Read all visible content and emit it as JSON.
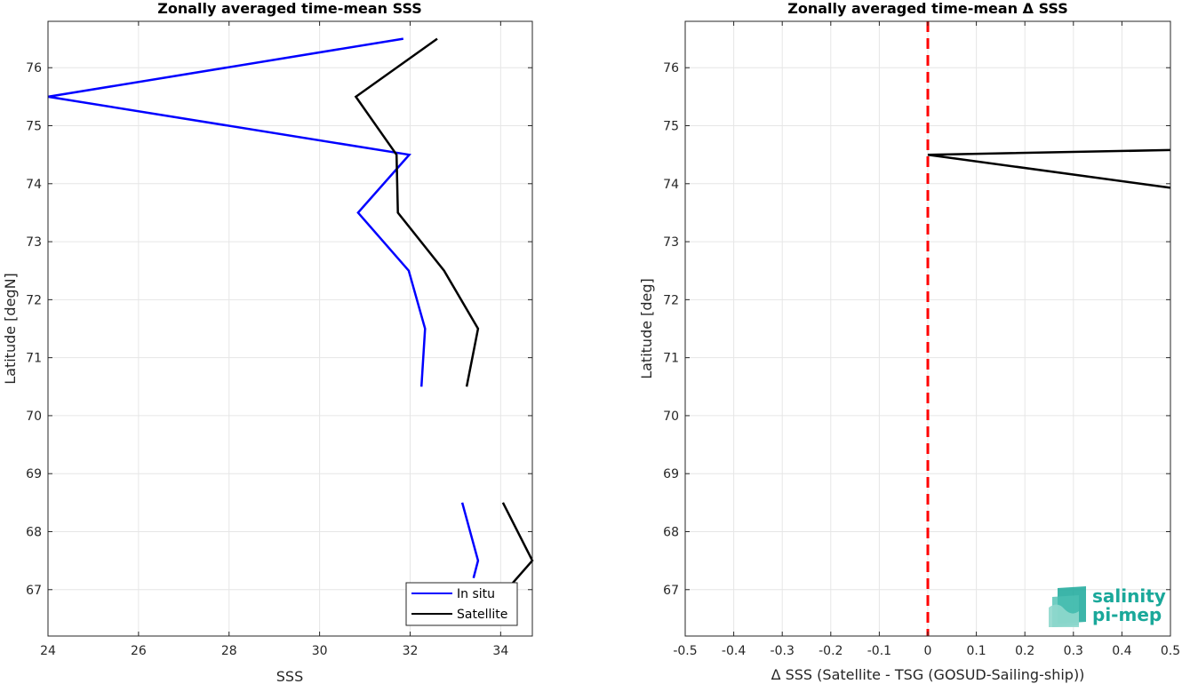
{
  "chart_data": [
    {
      "type": "line",
      "title": "Zonally averaged time-mean SSS",
      "xlabel": "SSS",
      "ylabel": "Latitude [degN]",
      "xlim": [
        24,
        34.7
      ],
      "ylim": [
        66.2,
        76.8
      ],
      "xticks": [
        24,
        26,
        28,
        30,
        32,
        34
      ],
      "yticks": [
        67,
        68,
        69,
        70,
        71,
        72,
        73,
        74,
        75,
        76
      ],
      "grid": true,
      "legend_position": "bottom-right",
      "series": [
        {
          "name": "In situ",
          "color": "#0000ff",
          "segments": [
            [
              [
                31.85,
                76.5
              ],
              [
                24.0,
                75.5
              ],
              [
                31.98,
                74.5
              ],
              [
                30.85,
                73.5
              ],
              [
                31.97,
                72.5
              ],
              [
                32.33,
                71.5
              ],
              [
                32.25,
                70.5
              ]
            ],
            [
              [
                33.15,
                68.5
              ],
              [
                33.5,
                67.5
              ],
              [
                33.4,
                67.2
              ]
            ]
          ]
        },
        {
          "name": "Satellite",
          "color": "#000000",
          "segments": [
            [
              [
                32.6,
                76.5
              ],
              [
                30.8,
                75.5
              ],
              [
                31.7,
                74.5
              ],
              [
                31.73,
                73.5
              ],
              [
                32.75,
                72.5
              ],
              [
                33.5,
                71.5
              ],
              [
                33.25,
                70.5
              ]
            ],
            [
              [
                34.05,
                68.5
              ],
              [
                34.7,
                67.5
              ],
              [
                34.25,
                67.1
              ]
            ]
          ]
        }
      ]
    },
    {
      "type": "line",
      "title": "Zonally averaged time-mean Δ SSS",
      "xlabel": "Δ SSS (Satellite - TSG (GOSUD-Sailing-ship))",
      "ylabel": "Latitude [deg]",
      "xlim": [
        -0.5,
        0.5
      ],
      "ylim": [
        66.2,
        76.8
      ],
      "xticks": [
        -0.5,
        -0.4,
        -0.3,
        -0.2,
        -0.1,
        0,
        0.1,
        0.2,
        0.3,
        0.4,
        0.5
      ],
      "yticks": [
        67,
        68,
        69,
        70,
        71,
        72,
        73,
        74,
        75,
        76
      ],
      "grid": true,
      "reference_line": {
        "x": 0,
        "color": "#ff0000",
        "style": "dashed"
      },
      "series": [
        {
          "color": "#000000",
          "segments": [
            [
              [
                0.5,
                74.58
              ],
              [
                0.0,
                74.5
              ],
              [
                0.5,
                73.93
              ]
            ]
          ]
        }
      ]
    }
  ],
  "logo": {
    "line1": "salinity",
    "line2": "pi-mep",
    "color": "#1aa89a"
  }
}
